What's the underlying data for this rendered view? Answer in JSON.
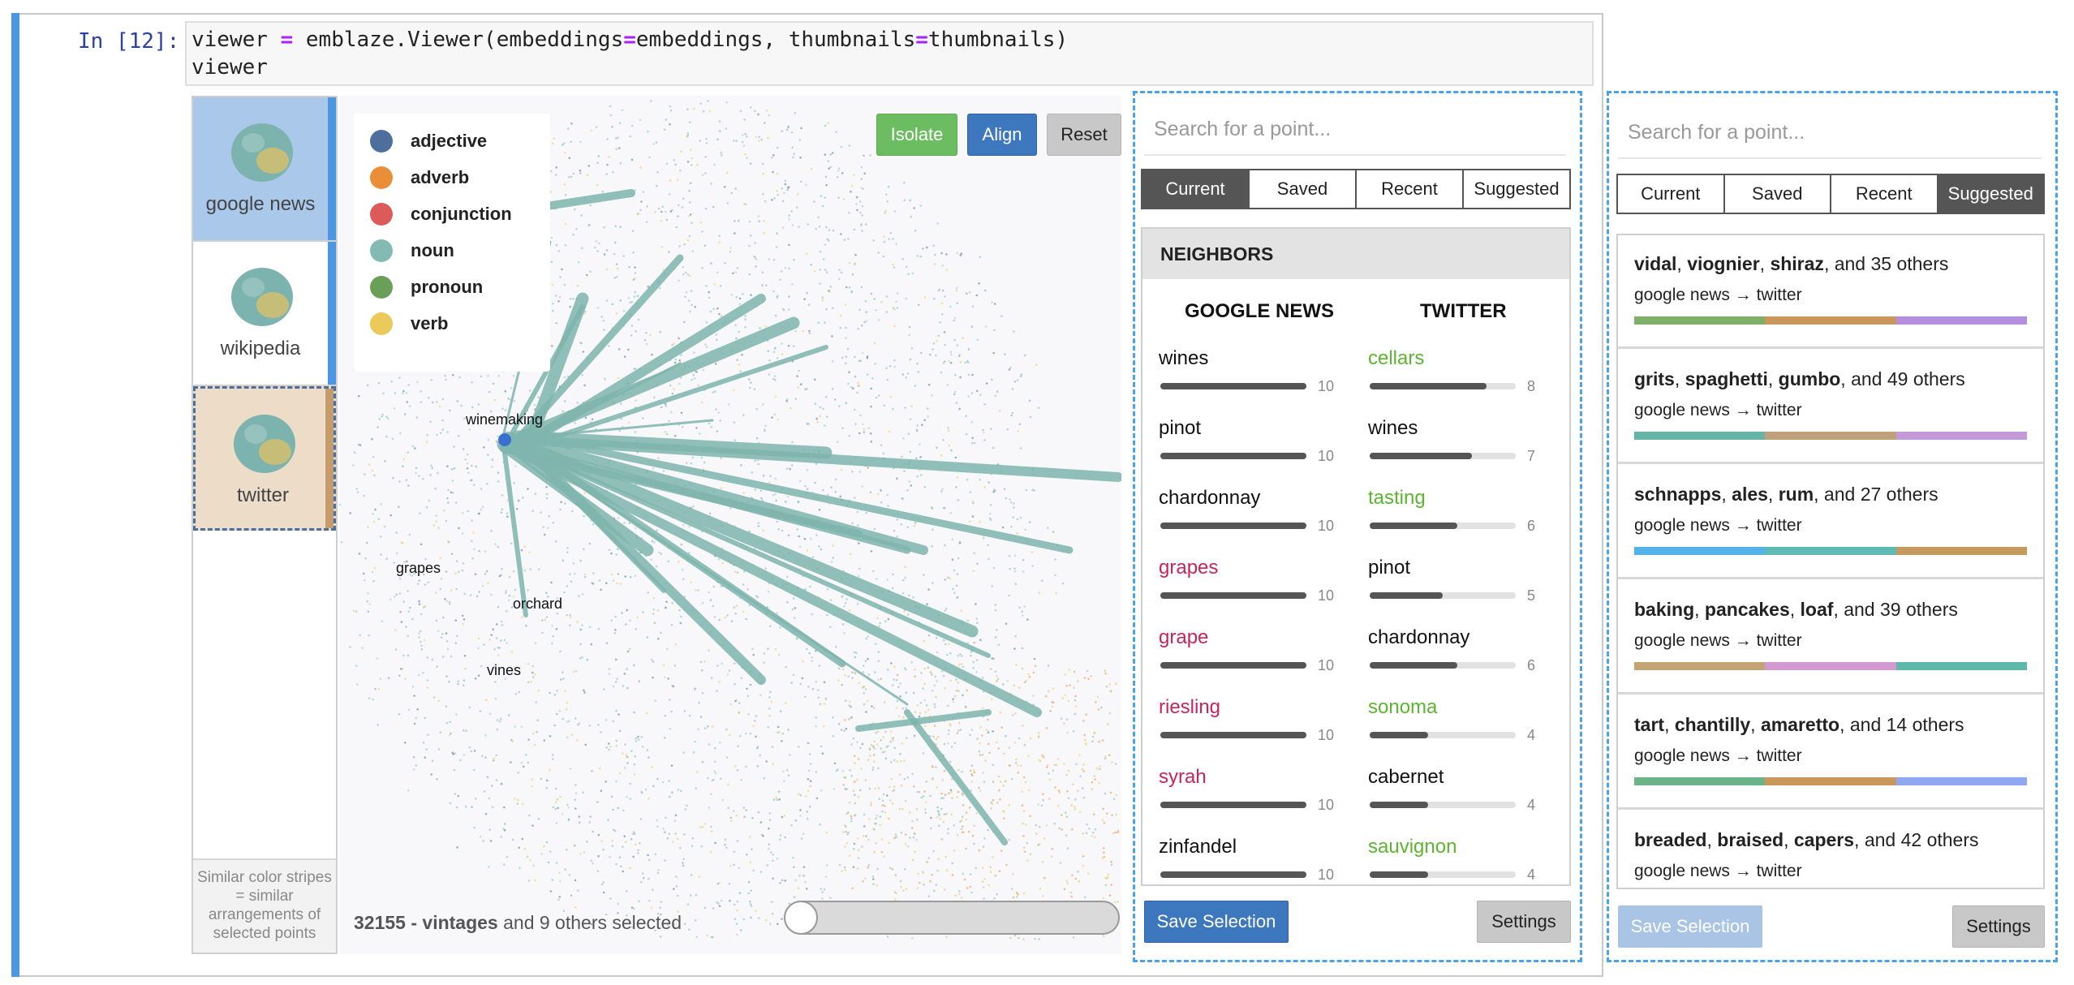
{
  "cell": {
    "prompt": "In [12]:",
    "code_line1_pre": "viewer ",
    "code_eq": "=",
    "code_line1_mid": " emblaze.Viewer(embeddings",
    "code_eq2": "=",
    "code_line1_mid2": "embeddings, thumbnails",
    "code_eq3": "=",
    "code_line1_post": "thumbnails)",
    "code_line2": "viewer"
  },
  "thumbnails": {
    "items": [
      {
        "label": "google news",
        "stripe": "#4d97e2",
        "bg": "#a9c8ea"
      },
      {
        "label": "wikipedia",
        "stripe": "#4d97e2",
        "bg": "#ffffff"
      },
      {
        "label": "twitter",
        "stripe": "#c69c6d",
        "bg": "#ecdcc8"
      }
    ],
    "note": "Similar color stripes = similar arrangements of selected points"
  },
  "legend": {
    "items": [
      {
        "label": "adjective",
        "color": "#4e6f9e"
      },
      {
        "label": "adverb",
        "color": "#ea8e3a"
      },
      {
        "label": "conjunction",
        "color": "#dc5a5a"
      },
      {
        "label": "noun",
        "color": "#84bab4"
      },
      {
        "label": "pronoun",
        "color": "#6a9f58"
      },
      {
        "label": "verb",
        "color": "#ebc95a"
      }
    ]
  },
  "toolbar": {
    "isolate": "Isolate",
    "align": "Align",
    "reset": "Reset"
  },
  "map_labels": {
    "winemaking": "winemaking",
    "grapes": "grapes",
    "orchard": "orchard",
    "vines": "vines"
  },
  "status": {
    "selected_prefix": "32155 - vintages",
    "selected_suffix": " and 9 others selected"
  },
  "left_sidebar": {
    "search_placeholder": "Search for a point...",
    "tabs": [
      "Current",
      "Saved",
      "Recent",
      "Suggested"
    ],
    "active_tab": "Current",
    "neighbors_header": "NEIGHBORS",
    "col1_title": "GOOGLE NEWS",
    "col2_title": "TWITTER",
    "col1": [
      {
        "word": "wines",
        "count": "10",
        "value": 1.0,
        "color": "#111111"
      },
      {
        "word": "pinot",
        "count": "10",
        "value": 1.0,
        "color": "#111111"
      },
      {
        "word": "chardonnay",
        "count": "10",
        "value": 1.0,
        "color": "#111111"
      },
      {
        "word": "grapes",
        "count": "10",
        "value": 1.0,
        "color": "#c8245a"
      },
      {
        "word": "grape",
        "count": "10",
        "value": 1.0,
        "color": "#c8245a"
      },
      {
        "word": "riesling",
        "count": "10",
        "value": 1.0,
        "color": "#c8245a"
      },
      {
        "word": "syrah",
        "count": "10",
        "value": 1.0,
        "color": "#c8245a"
      },
      {
        "word": "zinfandel",
        "count": "10",
        "value": 1.0,
        "color": "#111111"
      }
    ],
    "col2": [
      {
        "word": "cellars",
        "count": "8",
        "value": 0.8,
        "color": "#5cb531"
      },
      {
        "word": "wines",
        "count": "7",
        "value": 0.7,
        "color": "#111111"
      },
      {
        "word": "tasting",
        "count": "6",
        "value": 0.6,
        "color": "#5cb531"
      },
      {
        "word": "pinot",
        "count": "5",
        "value": 0.5,
        "color": "#111111"
      },
      {
        "word": "chardonnay",
        "count": "6",
        "value": 0.6,
        "color": "#111111"
      },
      {
        "word": "sonoma",
        "count": "4",
        "value": 0.4,
        "color": "#5cb531"
      },
      {
        "word": "cabernet",
        "count": "4",
        "value": 0.4,
        "color": "#111111"
      },
      {
        "word": "sauvignon",
        "count": "4",
        "value": 0.4,
        "color": "#5cb531"
      }
    ],
    "save_selection": "Save Selection",
    "settings": "Settings"
  },
  "right_sidebar": {
    "search_placeholder": "Search for a point...",
    "tabs": [
      "Current",
      "Saved",
      "Recent",
      "Suggested"
    ],
    "active_tab": "Suggested",
    "suggestions": [
      {
        "w1": "vidal",
        "w2": "viognier",
        "w3": "shiraz",
        "rest": ", and 35 others",
        "sub": "google news → twitter",
        "colors": [
          "#7fb069",
          "#c9975c",
          "#b48fe0"
        ]
      },
      {
        "w1": "grits",
        "w2": "spaghetti",
        "w3": "gumbo",
        "rest": ", and 49 others",
        "sub": "google news → twitter",
        "colors": [
          "#66b4a8",
          "#bfa07a",
          "#c49bd8"
        ]
      },
      {
        "w1": "schnapps",
        "w2": "ales",
        "w3": "rum",
        "rest": ", and 27 others",
        "sub": "google news → twitter",
        "colors": [
          "#55b2e8",
          "#5fb9b4",
          "#c59a5e"
        ]
      },
      {
        "w1": "baking",
        "w2": "pancakes",
        "w3": "loaf",
        "rest": ", and 39 others",
        "sub": "google news → twitter",
        "colors": [
          "#c3a472",
          "#d29ad0",
          "#5fb9ab"
        ]
      },
      {
        "w1": "tart",
        "w2": "chantilly",
        "w3": "amaretto",
        "rest": ", and 14 others",
        "sub": "google news → twitter",
        "colors": [
          "#6db38a",
          "#c9975c",
          "#8fa8f0"
        ]
      },
      {
        "w1": "breaded",
        "w2": "braised",
        "w3": "capers",
        "rest": ", and 42 others",
        "sub": "google news → twitter",
        "colors": [
          "#6ab0a0",
          "#c9975c",
          "#8fd0d0"
        ]
      }
    ],
    "save_selection": "Save Selection",
    "settings": "Settings"
  }
}
